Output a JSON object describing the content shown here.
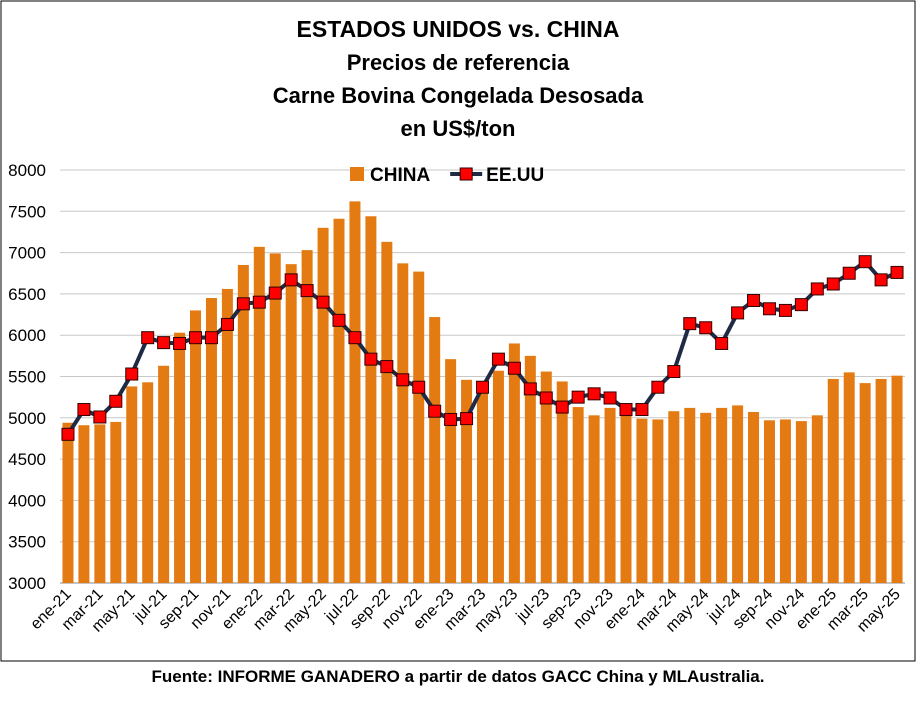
{
  "chart_data": {
    "type": "bar_line",
    "title": [
      "ESTADOS UNIDOS vs. CHINA",
      "Precios de referencia",
      "Carne Bovina Congelada Desosada",
      "en US$/ton"
    ],
    "source": "Fuente: INFORME GANADERO a partir de datos GACC China y MLAustralia.",
    "categories": [
      "ene-21",
      null,
      "mar-21",
      null,
      "may-21",
      null,
      "jul-21",
      null,
      "sep-21",
      null,
      "nov-21",
      null,
      "ene-22",
      null,
      "mar-22",
      null,
      "may-22",
      null,
      "jul-22",
      null,
      "sep-22",
      null,
      "nov-22",
      null,
      "ene-23",
      null,
      "mar-23",
      null,
      "may-23",
      null,
      "jul-23",
      null,
      "sep-23",
      null,
      "nov-23",
      null,
      "ene-24",
      null,
      "mar-24",
      null,
      "may-24",
      null,
      "jul-24",
      null,
      "sep-24",
      null,
      "nov-24",
      null,
      "ene-25",
      null,
      "mar-25",
      null,
      "may-25"
    ],
    "series": [
      {
        "name": "CHINA",
        "kind": "bar",
        "color": "#e47b12",
        "values": [
          4940,
          4910,
          4920,
          4950,
          5380,
          5430,
          5630,
          6030,
          6300,
          6450,
          6560,
          6850,
          7070,
          6990,
          6860,
          7030,
          7300,
          7410,
          7620,
          7440,
          7130,
          6870,
          6770,
          6220,
          5710,
          5460,
          5380,
          5570,
          5900,
          5750,
          5560,
          5440,
          5130,
          5030,
          5120,
          5110,
          4990,
          4980,
          5080,
          5120,
          5060,
          5120,
          5150,
          5070,
          4970,
          4980,
          4960,
          5030,
          5470,
          5550,
          5420,
          5470,
          5510
        ]
      },
      {
        "name": "EE.UU",
        "kind": "line",
        "color": "#1f2a44",
        "marker_color": "#ff0000",
        "values": [
          4800,
          5100,
          5010,
          5200,
          5530,
          5970,
          5910,
          5900,
          5970,
          5970,
          6130,
          6380,
          6400,
          6510,
          6670,
          6540,
          6400,
          6180,
          5970,
          5710,
          5620,
          5460,
          5370,
          5080,
          4980,
          4990,
          5370,
          5710,
          5600,
          5350,
          5240,
          5130,
          5250,
          5290,
          5240,
          5100,
          5100,
          5370,
          5560,
          6140,
          6090,
          5900,
          6270,
          6420,
          6320,
          6300,
          6370,
          6560,
          6620,
          6750,
          6890,
          6670,
          6760
        ]
      }
    ],
    "ylim": [
      3000,
      8000
    ],
    "yticks": [
      3000,
      3500,
      4000,
      4500,
      5000,
      5500,
      6000,
      6500,
      7000,
      7500,
      8000
    ],
    "grid": true,
    "legend": "top"
  }
}
